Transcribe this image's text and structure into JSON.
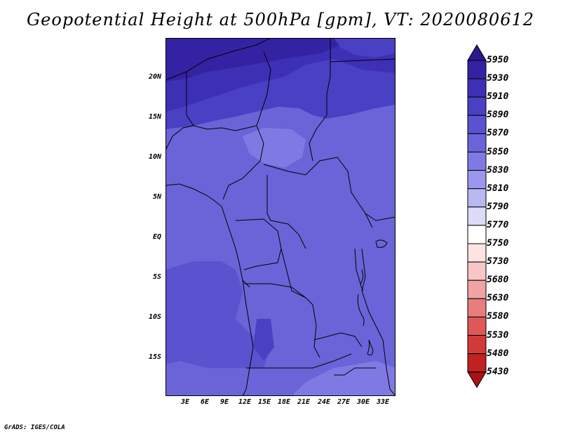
{
  "title": "Geopotential Height at 500hPa [gpm], VT: 2020080612",
  "map": {
    "lat_labels": [
      "20N",
      "15N",
      "10N",
      "5N",
      "EQ",
      "5S",
      "10S",
      "15S"
    ],
    "lon_labels": [
      "3E",
      "6E",
      "9E",
      "12E",
      "15E",
      "18E",
      "21E",
      "24E",
      "27E",
      "30E",
      "33E"
    ]
  },
  "colorbar": {
    "levels": [
      "5950",
      "5930",
      "5910",
      "5890",
      "5870",
      "5850",
      "5830",
      "5810",
      "5790",
      "5770",
      "5750",
      "5730",
      "5680",
      "5630",
      "5580",
      "5530",
      "5480",
      "5430"
    ],
    "colors": [
      "#2a1a8c",
      "#3323a3",
      "#3d30b5",
      "#4a40c4",
      "#5a52cf",
      "#6a64d8",
      "#7f7ae3",
      "#9a97ec",
      "#b9b8f3",
      "#dcdcfa",
      "#ffffff",
      "#fde3e3",
      "#f8c6c6",
      "#f0a3a3",
      "#e87d7d",
      "#de5858",
      "#d23a3a",
      "#c02222",
      "#a81313"
    ]
  },
  "footer": "GrADS: IGES/COLA"
}
